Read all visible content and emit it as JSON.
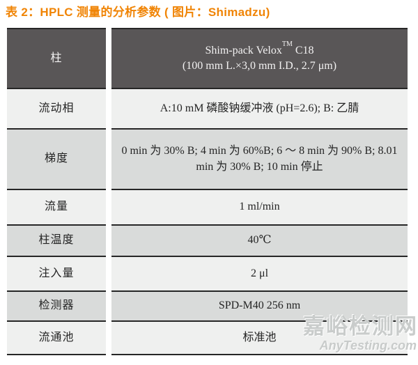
{
  "title": "表 2：HPLC 测量的分析参数 ( 图片：Shimadzu)",
  "colors": {
    "title_orange": "#f08405",
    "header_dark": "#595657",
    "row_light": "#eff0ef",
    "row_gray": "#d9dbda",
    "divider_dark": "#262626",
    "watermark_gray": "#c6c9c8"
  },
  "table": {
    "rows": [
      {
        "label": "柱",
        "value_brand": "Shim-pack Velox",
        "value_tm": "TM",
        "value_model": "C18",
        "value_spec": "(100 mm L.×3,0 mm I.D., 2.7 μm)"
      },
      {
        "label": "流动相",
        "value": "A:10 mM 磷酸钠缓冲液 (pH=2.6); B: 乙腈"
      },
      {
        "label": "梯度",
        "value": "0 min 为 30% B; 4 min 为 60%B; 6 ～ 8 min 为 90% B; 8.01 min 为 30% B; 10 min 停止"
      },
      {
        "label": "流量",
        "value": "1 ml/min"
      },
      {
        "label": "柱温度",
        "value": "40℃"
      },
      {
        "label": "注入量",
        "value": "2 μl"
      },
      {
        "label": "检测器",
        "value": "SPD-M40 256 nm"
      },
      {
        "label": "流通池",
        "value": "标准池"
      }
    ]
  },
  "watermark": {
    "cn": "嘉峪检测网",
    "en": "AnyTesting.com"
  }
}
